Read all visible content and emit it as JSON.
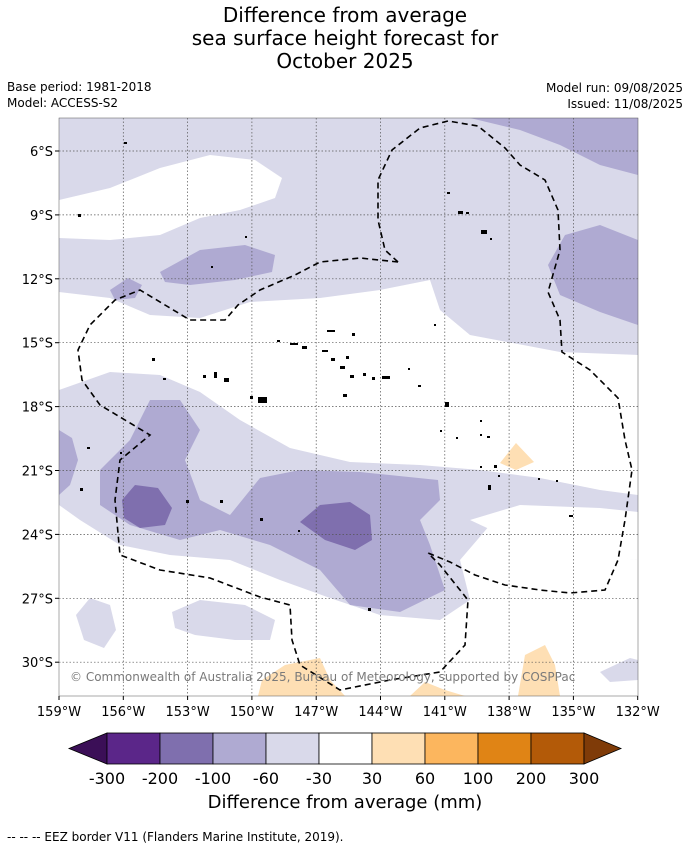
{
  "title_lines": [
    "Difference from average",
    "sea surface height forecast for",
    "October 2025"
  ],
  "meta": {
    "base_period": "Base period: 1981-2018",
    "model": "Model: ACCESS-S2",
    "model_run": "Model run: 09/08/2025",
    "issued": "Issued: 11/08/2025"
  },
  "map": {
    "lat_labels": [
      "6°S",
      "9°S",
      "12°S",
      "15°S",
      "18°S",
      "21°S",
      "24°S",
      "27°S",
      "30°S"
    ],
    "lon_labels": [
      "159°W",
      "156°W",
      "153°W",
      "150°W",
      "147°W",
      "144°W",
      "141°W",
      "138°W",
      "135°W",
      "132°W"
    ],
    "copyright": "© Commonwealth of Australia 2025, Bureau of Meteorology, supported by COSPPac"
  },
  "colorbar": {
    "labels": [
      "-300",
      "-200",
      "-100",
      "-60",
      "-30",
      "30",
      "60",
      "100",
      "200",
      "300"
    ],
    "colors": [
      "#3b0f57",
      "#5b2689",
      "#7f6fae",
      "#afaad2",
      "#d9d9ea",
      "#ffffff",
      "#fedfb4",
      "#fcb65e",
      "#e08415",
      "#b35a08",
      "#7f3b08"
    ],
    "title": "Difference from average (mm)"
  },
  "footnote": "--  --  -- EEZ border V11 (Flanders Marine Institute, 2019)."
}
